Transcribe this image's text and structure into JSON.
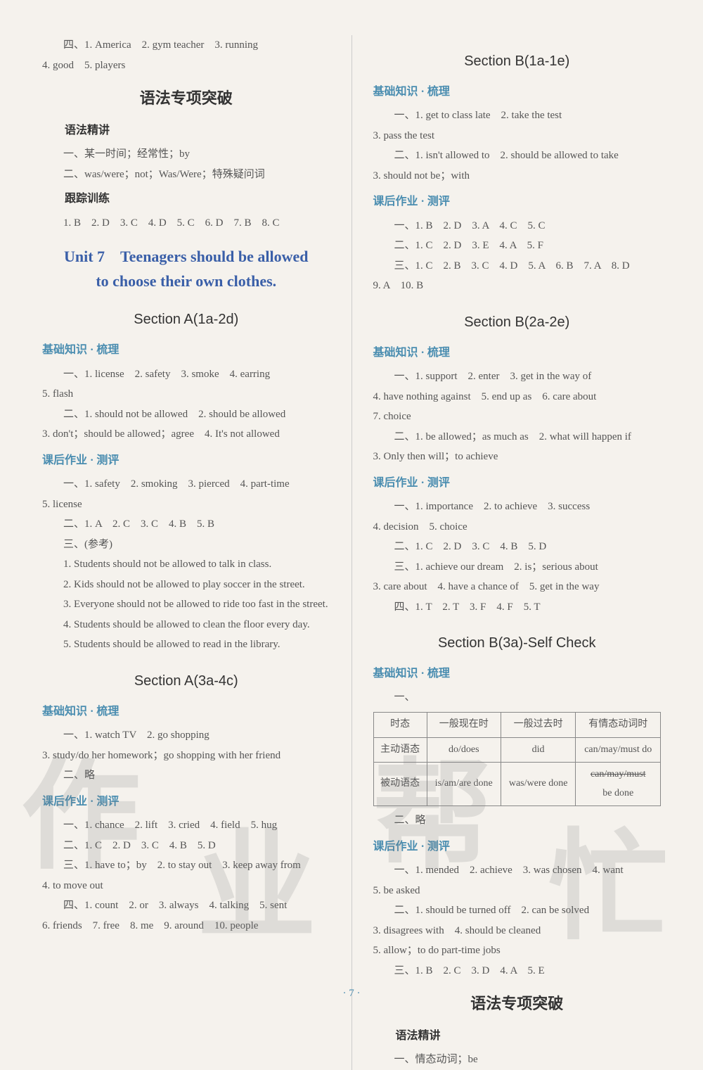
{
  "top_line1": "四、1. America　2. gym teacher　3. running",
  "top_line2": "4. good　5. players",
  "left": {
    "grammar_title": "语法专项突破",
    "gp_h": "语法精讲",
    "gp1": "一、某一时间；经常性；by",
    "gp2": "二、was/were；not；Was/Were；特殊疑问词",
    "track_h": "跟踪训练",
    "track": "1. B　2. D　3. C　4. D　5. C　6. D　7. B　8. C",
    "unit_l1": "Unit 7　Teenagers should be allowed",
    "unit_l2": "to choose their own clothes.",
    "secA1": "Section A(1a-2d)",
    "bk1": "基础知识 · 梳理",
    "a1_1": "一、1. license　2. safety　3. smoke　4. earring",
    "a1_2": "5. flash",
    "a1_3": "二、1. should not be allowed　2. should be allowed",
    "a1_4": "3. don't；should be allowed；agree　4. It's not allowed",
    "hw1": "课后作业 · 测评",
    "a1_5": "一、1. safety　2. smoking　3. pierced　4. part-time",
    "a1_6": "5. license",
    "a1_7": "二、1. A　2. C　3. C　4. B　5. B",
    "a1_8": "三、(参考)",
    "s1": "1. Students should not be allowed to talk in class.",
    "s2": "2. Kids should not be allowed to play soccer in the street.",
    "s3": "3. Everyone should not be allowed to ride too fast in the street.",
    "s4": "4. Students should be allowed to clean the floor every day.",
    "s5": "5. Students should be allowed to read in the library.",
    "secA2": "Section A(3a-4c)",
    "bk2": "基础知识 · 梳理",
    "a2_1": "一、1. watch TV　2. go shopping",
    "a2_2": "3. study/do her homework；go shopping with her friend",
    "a2_3": "二、略",
    "hw2": "课后作业 · 测评",
    "a2_4": "一、1. chance　2. lift　3. cried　4. field　5. hug",
    "a2_5": "二、1. C　2. D　3. C　4. B　5. D",
    "a2_6": "三、1. have to；by　2. to stay out　3. keep away from",
    "a2_7": "4. to move out",
    "a2_8": "四、1. count　2. or　3. always　4. talking　5. sent",
    "a2_9": "6. friends　7. free　8. me　9. around　10. people"
  },
  "right": {
    "secB1": "Section B(1a-1e)",
    "bk1": "基础知识 · 梳理",
    "b1_1": "一、1. get to class late　2. take the test",
    "b1_2": "3. pass the test",
    "b1_3": "二、1. isn't allowed to　2. should be allowed to take",
    "b1_4": "3. should not be；with",
    "hw1": "课后作业 · 测评",
    "b1_5": "一、1. B　2. D　3. A　4. C　5. C",
    "b1_6": "二、1. C　2. D　3. E　4. A　5. F",
    "b1_7": "三、1. C　2. B　3. C　4. D　5. A　6. B　7. A　8. D",
    "b1_8": "9. A　10. B",
    "secB2": "Section B(2a-2e)",
    "bk2": "基础知识 · 梳理",
    "b2_1": "一、1. support　2. enter　3. get in the way of",
    "b2_2": "4. have nothing against　5. end up as　6. care about",
    "b2_3": "7. choice",
    "b2_4": "二、1. be allowed；as much as　2. what will happen if",
    "b2_5": "3. Only then will；to achieve",
    "hw2": "课后作业 · 测评",
    "b2_6": "一、1. importance　2. to achieve　3. success",
    "b2_7": "4. decision　5. choice",
    "b2_8": "二、1. C　2. D　3. C　4. B　5. D",
    "b2_9": "三、1. achieve our dream　2. is；serious about",
    "b2_10": "3. care about　4. have a chance of　5. get in the way",
    "b2_11": "四、1. T　2. T　3. F　4. F　5. T",
    "secB3": "Section B(3a)-Self Check",
    "bk3": "基础知识 · 梳理",
    "one": "一、",
    "table": {
      "h": [
        "时态",
        "一般现在时",
        "一般过去时",
        "有情态动词时"
      ],
      "r1": [
        "主动语态",
        "do/does",
        "did",
        "can/may/must do"
      ],
      "r2": [
        "被动语态",
        "is/am/are done",
        "was/were done"
      ],
      "r2_4a": "can/may/must",
      "r2_4b": "be done"
    },
    "two": "二、略",
    "hw3": "课后作业 · 测评",
    "b3_1": "一、1. mended　2. achieve　3. was chosen　4. want",
    "b3_2": "5. be asked",
    "b3_3": "二、1. should be turned off　2. can be solved",
    "b3_4": "3. disagrees with　4. should be cleaned",
    "b3_5": "5. allow；to do part-time jobs",
    "b3_6": "三、1. B　2. C　3. D　4. A　5. E",
    "grammar_title": "语法专项突破",
    "gp_h": "语法精讲",
    "gp1": "一、情态动词；be"
  },
  "pagenum": "· 7 ·",
  "watermark": [
    "作",
    "业",
    "帮",
    "忙"
  ]
}
